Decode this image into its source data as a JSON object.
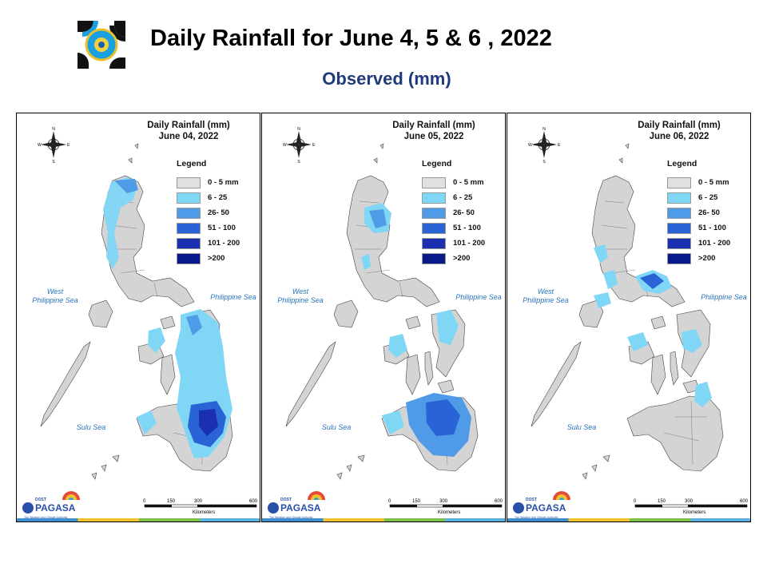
{
  "header": {
    "title": "Daily Rainfall for June 4, 5 & 6 , 2022",
    "subtitle": "Observed (mm)"
  },
  "legend": {
    "title": "Legend",
    "items": [
      {
        "label": "0 - 5 mm",
        "color": "#e0e0e0"
      },
      {
        "label": "6 - 25",
        "color": "#7fd6f5"
      },
      {
        "label": "26- 50",
        "color": "#4f9be8"
      },
      {
        "label": "51 - 100",
        "color": "#2a63d6"
      },
      {
        "label": "101 - 200",
        "color": "#1a30b0"
      },
      {
        "label": ">200",
        "color": "#081a8a"
      }
    ]
  },
  "sea_labels": {
    "west": "West\nPhilippine Sea",
    "east": "Philippine Sea",
    "sulu": "Sulu Sea"
  },
  "compass": {
    "n": "N",
    "s": "S",
    "e": "E",
    "w": "W"
  },
  "scale": {
    "ticks": [
      "0",
      "150",
      "300",
      "600"
    ],
    "unit": "Kilometers"
  },
  "brand": {
    "name": "PAGASA",
    "dost": "DOST",
    "tagline": "The Weather and Climate Authority"
  },
  "panels": [
    {
      "title": "Daily Rainfall (mm)",
      "date": "June 04, 2022"
    },
    {
      "title": "Daily Rainfall (mm)",
      "date": "June 05, 2022"
    },
    {
      "title": "Daily Rainfall (mm)",
      "date": "June 06, 2022"
    }
  ]
}
